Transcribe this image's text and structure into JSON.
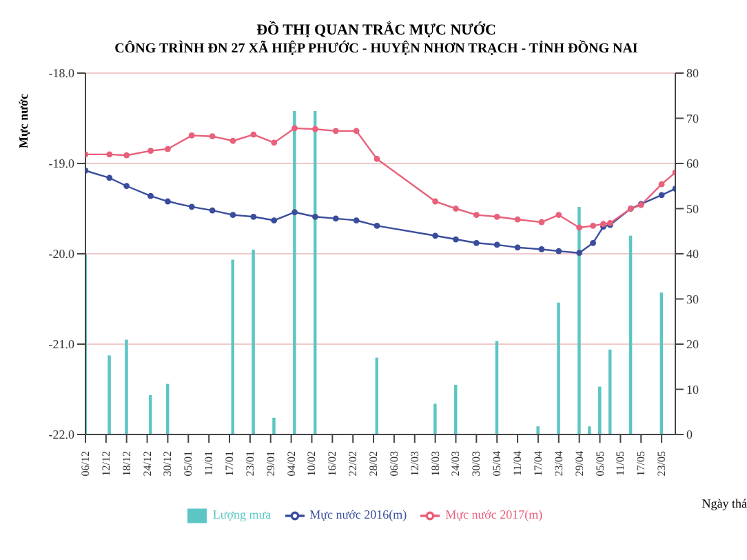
{
  "chart_data": {
    "type": "line",
    "title": "ĐỒ THỊ QUAN TRẮC MỰC NƯỚC",
    "subtitle": "CÔNG TRÌNH ĐN 27 XÃ HIỆP PHƯỚC - HUYỆN NHƠN TRẠCH - TỈNH ĐỒNG NAI",
    "ylabel": "Mực nước",
    "xlabel": "Ngày thá",
    "xlim": [
      "2016-12-06",
      "2017-05-27"
    ],
    "xticks": [
      {
        "value": "2016-12-06",
        "label": "06/12"
      },
      {
        "value": "2016-12-12",
        "label": "12/12"
      },
      {
        "value": "2016-12-18",
        "label": "18/12"
      },
      {
        "value": "2016-12-24",
        "label": "24/12"
      },
      {
        "value": "2016-12-30",
        "label": "30/12"
      },
      {
        "value": "2017-01-05",
        "label": "05/01"
      },
      {
        "value": "2017-01-11",
        "label": "11/01"
      },
      {
        "value": "2017-01-17",
        "label": "17/01"
      },
      {
        "value": "2017-01-23",
        "label": "23/01"
      },
      {
        "value": "2017-01-29",
        "label": "29/01"
      },
      {
        "value": "2017-02-04",
        "label": "04/02"
      },
      {
        "value": "2017-02-10",
        "label": "10/02"
      },
      {
        "value": "2017-02-16",
        "label": "16/02"
      },
      {
        "value": "2017-02-22",
        "label": "22/02"
      },
      {
        "value": "2017-02-28",
        "label": "28/02"
      },
      {
        "value": "2017-03-06",
        "label": "06/03"
      },
      {
        "value": "2017-03-12",
        "label": "12/03"
      },
      {
        "value": "2017-03-18",
        "label": "18/03"
      },
      {
        "value": "2017-03-24",
        "label": "24/03"
      },
      {
        "value": "2017-03-30",
        "label": "30/03"
      },
      {
        "value": "2017-04-05",
        "label": "05/04"
      },
      {
        "value": "2017-04-11",
        "label": "11/04"
      },
      {
        "value": "2017-04-17",
        "label": "17/04"
      },
      {
        "value": "2017-04-23",
        "label": "23/04"
      },
      {
        "value": "2017-04-29",
        "label": "29/04"
      },
      {
        "value": "2017-05-05",
        "label": "05/05"
      },
      {
        "value": "2017-05-11",
        "label": "11/05"
      },
      {
        "value": "2017-05-17",
        "label": "17/05"
      },
      {
        "value": "2017-05-23",
        "label": "23/05"
      }
    ],
    "ylim": [
      -22,
      -18
    ],
    "yticks": [
      {
        "value": -22,
        "label": "-22.0"
      },
      {
        "value": -21,
        "label": "-21.0"
      },
      {
        "value": -20,
        "label": "-20.0"
      },
      {
        "value": -19,
        "label": "-19.0"
      },
      {
        "value": -18,
        "label": "-18.0"
      }
    ],
    "y2lim": [
      0,
      80
    ],
    "y2ticks": [
      0,
      10,
      20,
      30,
      40,
      50,
      60,
      70,
      80
    ],
    "grid": "y",
    "legend": "bottom",
    "marker": "circle",
    "series": [
      {
        "name": "Lượng mưa",
        "type": "bar",
        "axis": "y2",
        "color": "#5cc6c4",
        "x": [
          "2016-12-06",
          "2016-12-13",
          "2016-12-18",
          "2016-12-25",
          "2016-12-30",
          "2017-01-18",
          "2017-01-24",
          "2017-01-30",
          "2017-02-05",
          "2017-02-11",
          "2017-03-01",
          "2017-03-18",
          "2017-03-24",
          "2017-04-05",
          "2017-04-17",
          "2017-04-23",
          "2017-04-29",
          "2017-05-02",
          "2017-05-05",
          "2017-05-08",
          "2017-05-14",
          "2017-05-23"
        ],
        "values": [
          40,
          17.5,
          21,
          8.7,
          11.2,
          38.7,
          40.9,
          3.7,
          71.6,
          71.6,
          17,
          6.8,
          11,
          20.7,
          1.8,
          29.2,
          50.4,
          1.8,
          10.6,
          18.8,
          44,
          31.4
        ]
      },
      {
        "name": "Mực nước 2016(m)",
        "color": "#3a4d9c",
        "x": [
          "2016-12-06",
          "2016-12-13",
          "2016-12-18",
          "2016-12-25",
          "2016-12-30",
          "2017-01-06",
          "2017-01-12",
          "2017-01-18",
          "2017-01-24",
          "2017-01-30",
          "2017-02-05",
          "2017-02-11",
          "2017-02-17",
          "2017-02-23",
          "2017-03-01",
          "2017-03-18",
          "2017-03-24",
          "2017-03-30",
          "2017-04-05",
          "2017-04-11",
          "2017-04-18",
          "2017-04-23",
          "2017-04-29",
          "2017-05-03",
          "2017-05-06",
          "2017-05-08",
          "2017-05-14",
          "2017-05-17",
          "2017-05-23",
          "2017-05-27"
        ],
        "values": [
          -19.08,
          -19.16,
          -19.25,
          -19.36,
          -19.42,
          -19.48,
          -19.52,
          -19.57,
          -19.59,
          -19.63,
          -19.54,
          -19.59,
          -19.61,
          -19.63,
          -19.69,
          -19.8,
          -19.84,
          -19.88,
          -19.9,
          -19.93,
          -19.95,
          -19.97,
          -19.99,
          -19.88,
          -19.7,
          -19.68,
          -19.5,
          -19.45,
          -19.35,
          -19.28
        ]
      },
      {
        "name": "Mực nước 2017(m)",
        "color": "#e8607a",
        "x": [
          "2016-12-06",
          "2016-12-13",
          "2016-12-18",
          "2016-12-25",
          "2016-12-30",
          "2017-01-06",
          "2017-01-12",
          "2017-01-18",
          "2017-01-24",
          "2017-01-30",
          "2017-02-05",
          "2017-02-11",
          "2017-02-17",
          "2017-02-23",
          "2017-03-01",
          "2017-03-18",
          "2017-03-24",
          "2017-03-30",
          "2017-04-05",
          "2017-04-11",
          "2017-04-18",
          "2017-04-23",
          "2017-04-29",
          "2017-05-03",
          "2017-05-06",
          "2017-05-08",
          "2017-05-14",
          "2017-05-17",
          "2017-05-23",
          "2017-05-27"
        ],
        "values": [
          -18.9,
          -18.9,
          -18.91,
          -18.86,
          -18.84,
          -18.69,
          -18.7,
          -18.75,
          -18.68,
          -18.77,
          -18.61,
          -18.62,
          -18.64,
          -18.64,
          -18.95,
          -19.42,
          -19.5,
          -19.57,
          -19.59,
          -19.62,
          -19.65,
          -19.57,
          -19.71,
          -19.69,
          -19.67,
          -19.66,
          -19.5,
          -19.46,
          -19.23,
          -19.1
        ]
      }
    ]
  }
}
